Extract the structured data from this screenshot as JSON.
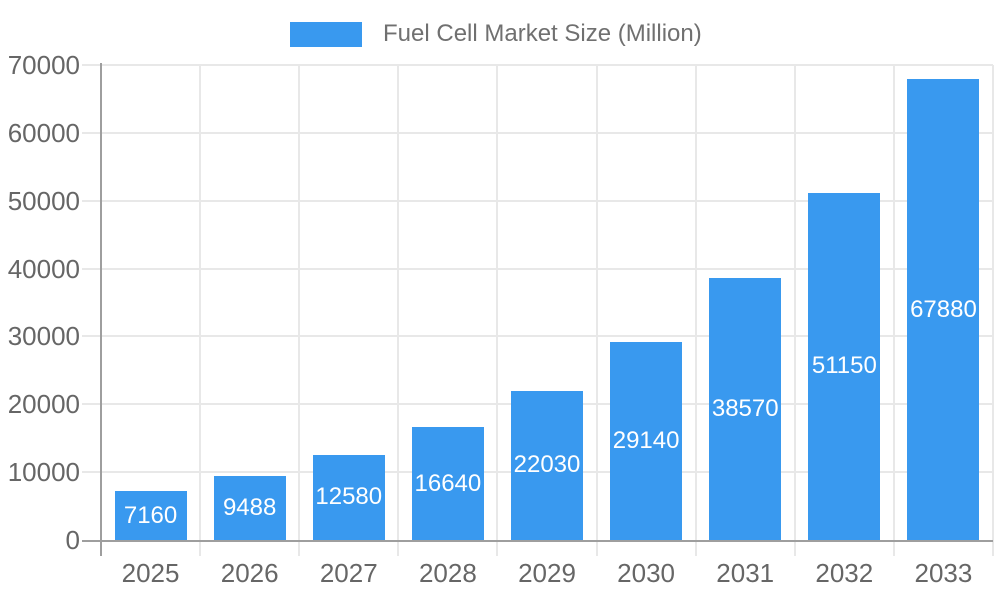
{
  "chart_data": {
    "type": "bar",
    "title": "Fuel Cell Market Size (Million)",
    "categories": [
      "2025",
      "2026",
      "2027",
      "2028",
      "2029",
      "2030",
      "2031",
      "2032",
      "2033"
    ],
    "series": [
      {
        "name": "Fuel Cell Market Size (Million)",
        "values": [
          7160,
          9488,
          12580,
          16640,
          22030,
          29140,
          38570,
          51150,
          67880
        ]
      }
    ],
    "value_labels": [
      "7160",
      "9488",
      "12580",
      "16640",
      "22030",
      "29140",
      "38570",
      "51150",
      "67880"
    ],
    "xlabel": "",
    "ylabel": "",
    "ylim": [
      0,
      70000
    ],
    "yticks": [
      0,
      10000,
      20000,
      30000,
      40000,
      50000,
      60000,
      70000
    ],
    "ytick_labels": [
      "0",
      "10000",
      "20000",
      "30000",
      "40000",
      "50000",
      "60000",
      "70000"
    ],
    "grid": true,
    "legend_position": "top-center",
    "colors": {
      "bar": "#3999EF",
      "gridline": "#E8E8E8",
      "tick": "#DCDCDC",
      "axis_line": "#9E9E9E",
      "axis_text": "#666666",
      "legend_text": "#707070",
      "value_text": "#FFFFFF"
    }
  }
}
